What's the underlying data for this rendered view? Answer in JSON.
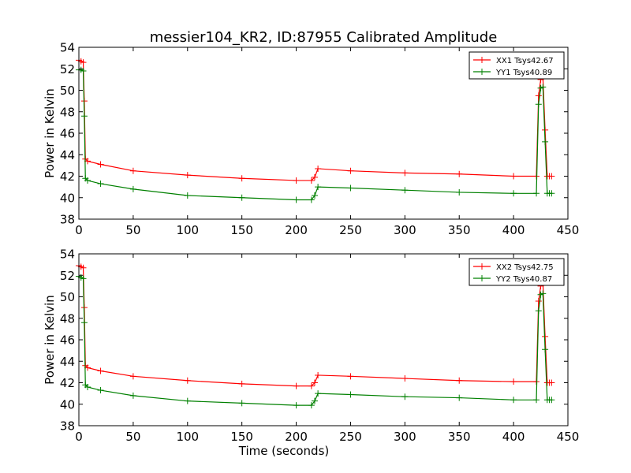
{
  "figure": {
    "title": "messier104_KR2, ID:87955 Calibrated Amplitude"
  },
  "chart_data": [
    {
      "type": "line",
      "title": "messier104_KR2, ID:87955 Calibrated Amplitude",
      "xlabel": "",
      "ylabel": "Power in Kelvin",
      "xlim": [
        0,
        450
      ],
      "ylim": [
        38,
        54
      ],
      "xticks": [
        "0",
        "50",
        "100",
        "150",
        "200",
        "250",
        "300",
        "350",
        "400",
        "450"
      ],
      "yticks": [
        "38",
        "40",
        "42",
        "44",
        "46",
        "48",
        "50",
        "52",
        "54"
      ],
      "grid": false,
      "legend_position": "top-right",
      "series": [
        {
          "name": "XX1 Tsys42.67",
          "color": "#ff0000",
          "marker": "+",
          "x": [
            0,
            2,
            4,
            5,
            6,
            8,
            20,
            50,
            100,
            150,
            200,
            214,
            217,
            220,
            250,
            300,
            350,
            400,
            421,
            423,
            425,
            427,
            429,
            431,
            433,
            435
          ],
          "y": [
            52.8,
            52.7,
            52.6,
            49.0,
            43.6,
            43.4,
            43.1,
            42.5,
            42.1,
            41.8,
            41.6,
            41.6,
            41.9,
            42.7,
            42.5,
            42.3,
            42.2,
            42.0,
            42.0,
            49.5,
            51.0,
            51.2,
            46.3,
            42.0,
            42.0,
            42.0
          ]
        },
        {
          "name": "YY1 Tsys40.89",
          "color": "#008000",
          "marker": "+",
          "x": [
            0,
            2,
            4,
            5,
            6,
            8,
            20,
            50,
            100,
            150,
            200,
            214,
            217,
            220,
            250,
            300,
            350,
            400,
            421,
            423,
            425,
            427,
            429,
            431,
            433,
            435
          ],
          "y": [
            51.9,
            51.9,
            51.8,
            47.6,
            41.8,
            41.6,
            41.3,
            40.8,
            40.2,
            40.0,
            39.8,
            39.8,
            40.2,
            41.0,
            40.9,
            40.7,
            40.5,
            40.4,
            40.4,
            48.7,
            50.2,
            50.3,
            45.2,
            40.4,
            40.4,
            40.4
          ]
        }
      ]
    },
    {
      "type": "line",
      "title": "",
      "xlabel": "Time (seconds)",
      "ylabel": "Power in Kelvin",
      "xlim": [
        0,
        450
      ],
      "ylim": [
        38,
        54
      ],
      "xticks": [
        "0",
        "50",
        "100",
        "150",
        "200",
        "250",
        "300",
        "350",
        "400",
        "450"
      ],
      "yticks": [
        "38",
        "40",
        "42",
        "44",
        "46",
        "48",
        "50",
        "52",
        "54"
      ],
      "grid": false,
      "legend_position": "top-right",
      "series": [
        {
          "name": "XX2 Tsys42.75",
          "color": "#ff0000",
          "marker": "+",
          "x": [
            0,
            2,
            4,
            5,
            6,
            8,
            20,
            50,
            100,
            150,
            200,
            214,
            217,
            220,
            250,
            300,
            350,
            400,
            421,
            423,
            425,
            427,
            429,
            431,
            433,
            435
          ],
          "y": [
            52.9,
            52.8,
            52.7,
            49.0,
            43.6,
            43.4,
            43.1,
            42.6,
            42.2,
            41.9,
            41.7,
            41.7,
            42.0,
            42.7,
            42.6,
            42.4,
            42.2,
            42.1,
            42.1,
            49.6,
            51.0,
            51.3,
            46.3,
            42.0,
            42.0,
            42.0
          ]
        },
        {
          "name": "YY2 Tsys40.87",
          "color": "#008000",
          "marker": "+",
          "x": [
            0,
            2,
            4,
            5,
            6,
            8,
            20,
            50,
            100,
            150,
            200,
            214,
            217,
            220,
            250,
            300,
            350,
            400,
            421,
            423,
            425,
            427,
            429,
            431,
            433,
            435
          ],
          "y": [
            51.9,
            51.8,
            51.7,
            47.6,
            41.8,
            41.6,
            41.3,
            40.8,
            40.3,
            40.1,
            39.9,
            39.9,
            40.3,
            41.0,
            40.9,
            40.7,
            40.6,
            40.4,
            40.4,
            48.7,
            50.2,
            50.3,
            45.1,
            40.4,
            40.4,
            40.4
          ]
        }
      ]
    }
  ]
}
